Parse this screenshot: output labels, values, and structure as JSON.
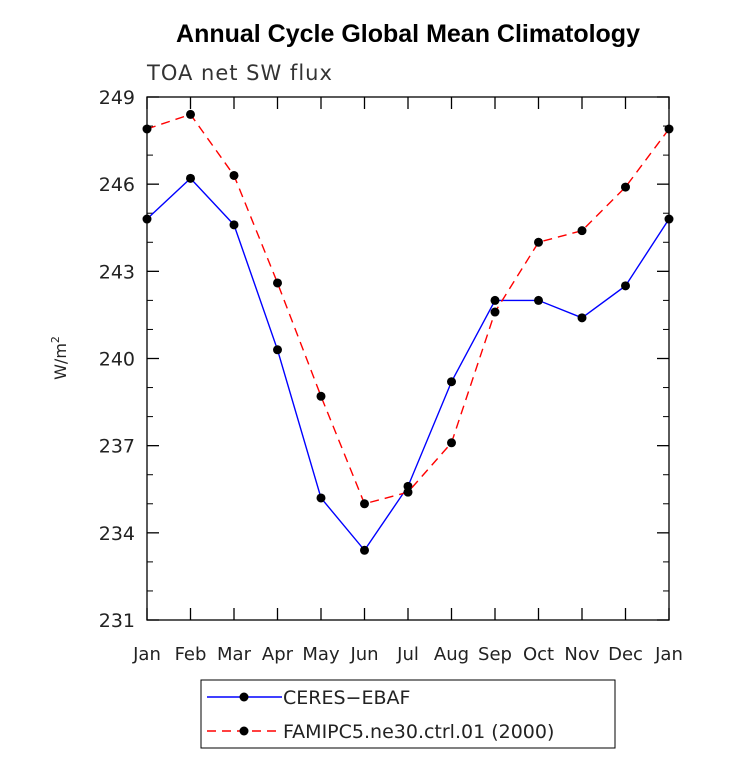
{
  "chart_data": {
    "type": "line",
    "title": "Annual Cycle Global Mean Climatology",
    "subtitle": "TOA net SW flux",
    "xlabel": "",
    "ylabel": "W/m",
    "ylabel_superscript": "2",
    "categories": [
      "Jan",
      "Feb",
      "Mar",
      "Apr",
      "May",
      "Jun",
      "Jul",
      "Aug",
      "Sep",
      "Oct",
      "Nov",
      "Dec",
      "Jan"
    ],
    "ylim": [
      231,
      249
    ],
    "yticks": [
      231,
      234,
      237,
      240,
      243,
      246,
      249
    ],
    "series": [
      {
        "name": "CERES−EBAF",
        "color": "#0000ff",
        "dash": "solid",
        "values": [
          244.8,
          246.2,
          244.6,
          240.3,
          235.2,
          233.4,
          235.6,
          239.2,
          242.0,
          242.0,
          241.4,
          242.5,
          244.8
        ]
      },
      {
        "name": "FAMIPC5.ne30.ctrl.01 (2000)",
        "color": "#ff0000",
        "dash": "dashed",
        "values": [
          247.9,
          248.4,
          246.3,
          242.6,
          238.7,
          235.0,
          235.4,
          237.1,
          241.6,
          244.0,
          244.4,
          245.9,
          247.9
        ]
      }
    ],
    "legend_position": "bottom-center",
    "grid": false
  }
}
